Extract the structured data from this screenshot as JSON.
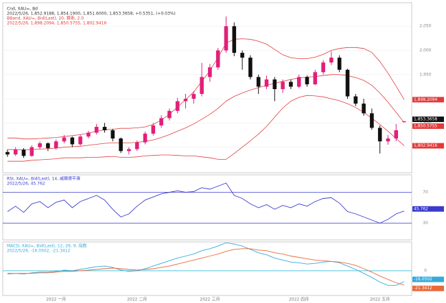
{
  "chart_data": [
    {
      "type": "candlestick",
      "ylim": [
        1750,
        2090
      ],
      "yticks": [
        {
          "value": 1800,
          "label": "1,800"
        },
        {
          "value": 1850,
          "label": "1,850"
        },
        {
          "value": 1900,
          "label": "1,900"
        },
        {
          "value": 1950,
          "label": "1,950"
        },
        {
          "value": 2000,
          "label": "2,000"
        },
        {
          "value": 2050,
          "label": "2,050"
        }
      ],
      "categories": [
        null,
        null,
        null,
        null,
        null,
        null,
        "2022 一月",
        null,
        null,
        null,
        null,
        null,
        null,
        null,
        null,
        null,
        "2022 二月",
        null,
        null,
        null,
        null,
        null,
        null,
        null,
        null,
        "2022 三月",
        null,
        null,
        null,
        null,
        null,
        null,
        null,
        null,
        null,
        null,
        "2022 四月",
        null,
        null,
        null,
        null,
        null,
        null,
        null,
        null,
        null,
        "2022 五月",
        null,
        null,
        null
      ],
      "series": [
        {
          "name": "Cnd, XAU=, Bd",
          "info": "2022/5/26, 1,852.9188, 1,854.1900, 1,851.6000, 1,853.3658, +0.5351, (+0.03%)",
          "up_color": "#e0207a",
          "down_color": "#111111",
          "open": [
            1790,
            1785,
            1795,
            1782,
            1800,
            1808,
            1798,
            1812,
            1820,
            1806,
            1822,
            1830,
            1842,
            1835,
            1818,
            1792,
            1796,
            1810,
            1828,
            1845,
            1860,
            1875,
            1895,
            1900,
            1910,
            1945,
            1965,
            2000,
            2050,
            1995,
            1985,
            1945,
            1925,
            1940,
            1920,
            1935,
            1925,
            1945,
            1930,
            1955,
            1975,
            1985,
            1960,
            1905,
            1890,
            1870,
            1840,
            1812,
            1818,
            1852.9188
          ],
          "high": [
            1795,
            1800,
            1798,
            1804,
            1812,
            1810,
            1816,
            1825,
            1822,
            1826,
            1834,
            1848,
            1850,
            1838,
            1820,
            1800,
            1814,
            1832,
            1850,
            1866,
            1880,
            1902,
            1910,
            1916,
            1974,
            1972,
            2005,
            2070,
            2058,
            2000,
            1990,
            1950,
            1948,
            1945,
            1940,
            1940,
            1950,
            1948,
            1960,
            1980,
            1998,
            1990,
            1962,
            1910,
            1900,
            1880,
            1845,
            1825,
            1848,
            1854.19
          ],
          "low": [
            1780,
            1782,
            1778,
            1780,
            1796,
            1792,
            1795,
            1808,
            1800,
            1803,
            1818,
            1826,
            1830,
            1812,
            1788,
            1785,
            1792,
            1806,
            1824,
            1840,
            1855,
            1870,
            1880,
            1890,
            1905,
            1935,
            1960,
            1995,
            1988,
            1960,
            1940,
            1910,
            1920,
            1895,
            1912,
            1920,
            1922,
            1925,
            1928,
            1950,
            1970,
            1955,
            1900,
            1885,
            1865,
            1836,
            1787,
            1805,
            1812,
            1851.6
          ],
          "close": [
            1785,
            1795,
            1782,
            1800,
            1808,
            1798,
            1812,
            1820,
            1806,
            1822,
            1830,
            1842,
            1835,
            1818,
            1792,
            1796,
            1810,
            1828,
            1845,
            1860,
            1875,
            1895,
            1900,
            1910,
            1945,
            1965,
            2000,
            2050,
            1995,
            1985,
            1945,
            1925,
            1940,
            1920,
            1935,
            1925,
            1945,
            1930,
            1955,
            1975,
            1985,
            1960,
            1905,
            1890,
            1870,
            1840,
            1812,
            1818,
            1835,
            1853.3658
          ]
        },
        {
          "name": "BBand, XAU=, Bid(Last), 20, 算術, 2.0",
          "info": "2022/5/26, 1,898.2094, 1,850.5755, 1,802.9416",
          "color": "#e23a3a",
          "upper": [
            1819,
            1819,
            1817,
            1817,
            1818,
            1819,
            1820,
            1822,
            1824,
            1826,
            1829,
            1833,
            1836,
            1837,
            1839,
            1839,
            1840,
            1842,
            1847,
            1856,
            1868,
            1883,
            1898,
            1914,
            1936,
            1958,
            1985,
            2015,
            2023,
            2024,
            2023,
            2019,
            2013,
            2002,
            1991,
            1985,
            1983,
            1983,
            1986,
            1992,
            2000,
            2004,
            2006,
            2006,
            2004,
            1996,
            1977,
            1953,
            1926,
            1898.2094
          ],
          "middle": [
            1795,
            1795,
            1794,
            1795,
            1796,
            1797,
            1798,
            1800,
            1801,
            1802,
            1804,
            1806,
            1808,
            1809,
            1809,
            1809,
            1810,
            1812,
            1815,
            1820,
            1826,
            1833,
            1840,
            1848,
            1858,
            1868,
            1880,
            1895,
            1905,
            1912,
            1918,
            1923,
            1928,
            1932,
            1936,
            1940,
            1943,
            1945,
            1946,
            1948,
            1950,
            1950,
            1948,
            1944,
            1938,
            1928,
            1912,
            1893,
            1872,
            1850.5755
          ],
          "lower": [
            1771,
            1771,
            1771,
            1773,
            1774,
            1775,
            1776,
            1778,
            1778,
            1778,
            1779,
            1779,
            1780,
            1781,
            1779,
            1779,
            1780,
            1782,
            1783,
            1784,
            1784,
            1783,
            1782,
            1782,
            1780,
            1778,
            1775,
            1775,
            1787,
            1800,
            1813,
            1827,
            1843,
            1862,
            1881,
            1895,
            1903,
            1907,
            1906,
            1904,
            1900,
            1896,
            1890,
            1882,
            1872,
            1860,
            1847,
            1833,
            1818,
            1802.9416
          ]
        }
      ],
      "tags": [
        "1,898.2094",
        "1,853.3658",
        "1,850.5755",
        "1,802.9416"
      ]
    },
    {
      "type": "line",
      "ylim": [
        10,
        90
      ],
      "yticks": [
        30,
        70
      ],
      "info": "2022/5/26, 45.762",
      "series": [
        {
          "name": "RSI, XAU=, Bid(Last), 14, 威爾德平滑",
          "color": "#3a3acc",
          "values": [
            45,
            52,
            44,
            55,
            58,
            50,
            57,
            60,
            50,
            58,
            62,
            66,
            60,
            48,
            38,
            42,
            52,
            60,
            64,
            68,
            70,
            72,
            70,
            71,
            76,
            74,
            78,
            82,
            66,
            62,
            55,
            50,
            54,
            48,
            53,
            50,
            55,
            52,
            58,
            62,
            63,
            56,
            45,
            42,
            38,
            34,
            30,
            35,
            42,
            45.762
          ]
        }
      ],
      "tags": [
        "45.762"
      ]
    },
    {
      "type": "line",
      "ylim": [
        -35,
        40
      ],
      "yticks": [
        0
      ],
      "info": "2022/5/26, -16.0502, -21.3412",
      "series": [
        {
          "name": "MACD, XAU=, Bid(Last), 12, 26, 9, 指数",
          "color": "#33aadd",
          "values": [
            -5,
            -4,
            -5,
            -3,
            -2,
            -2,
            -1,
            1,
            0,
            2,
            4,
            6,
            7,
            5,
            1,
            -1,
            0,
            3,
            7,
            11,
            15,
            19,
            22,
            25,
            30,
            33,
            37,
            42,
            40,
            37,
            32,
            27,
            24,
            19,
            16,
            13,
            12,
            10,
            11,
            13,
            14,
            12,
            7,
            2,
            -4,
            -10,
            -17,
            -22,
            -22,
            -16.0502
          ]
        },
        {
          "color": "#e8683a",
          "values": [
            -4,
            -4,
            -4,
            -4,
            -3,
            -3,
            -2,
            -1,
            -1,
            0,
            1,
            2,
            3,
            4,
            3,
            2,
            1,
            2,
            3,
            5,
            7,
            10,
            13,
            16,
            19,
            22,
            25,
            29,
            32,
            33,
            33,
            31,
            30,
            27,
            25,
            22,
            20,
            18,
            16,
            15,
            14,
            13,
            11,
            8,
            3,
            -2,
            -8,
            -13,
            -18,
            -21.3412
          ]
        }
      ],
      "tags": [
        "-16.0502",
        "-21.3412"
      ]
    }
  ]
}
